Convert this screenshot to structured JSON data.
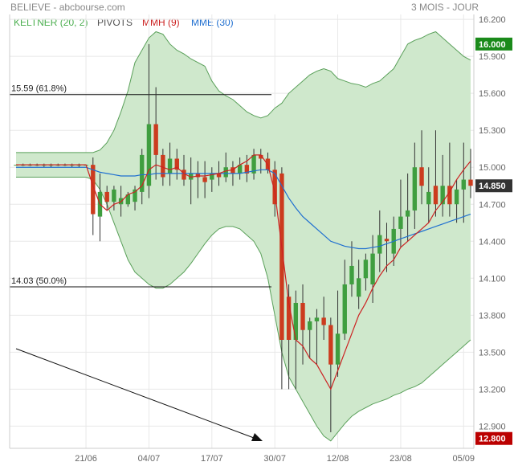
{
  "header": {
    "title": "BELIEVE - abcbourse.com",
    "period": "3 MOIS - JOUR"
  },
  "legend": [
    {
      "label": "KELTNER (20, 2)",
      "color": "#4caf50"
    },
    {
      "label": "PIVOTS",
      "color": "#555555"
    },
    {
      "label": "MMH (9)",
      "color": "#cc2222"
    },
    {
      "label": "MME (30)",
      "color": "#1f6fd0"
    }
  ],
  "colors": {
    "up": "#3f9e3f",
    "down": "#cc3b1e",
    "keltner_fill": "#cfe8cc",
    "keltner_line": "#5aa05a",
    "mmh": "#cc2222",
    "mme": "#1f6fd0",
    "badge_high": "#1a8a1a",
    "badge_current": "#333333",
    "badge_low": "#bb0000"
  },
  "chart_data": {
    "type": "candlestick",
    "title": "BELIEVE - abcbourse.com",
    "subtitle": "3 MOIS - JOUR",
    "x_ticks": [
      "21/06",
      "04/07",
      "17/07",
      "30/07",
      "12/08",
      "23/08",
      "05/09"
    ],
    "x_tick_bar_index": [
      10,
      19,
      28,
      37,
      46,
      55,
      64
    ],
    "y_ticks": [
      12.9,
      13.2,
      13.5,
      13.8,
      14.1,
      14.4,
      14.7,
      15.0,
      15.3,
      15.6,
      15.9,
      16.2
    ],
    "ylim": [
      12.72,
      16.24
    ],
    "fib_levels": [
      {
        "label": "15.59 (61.8%)",
        "value": 15.59
      },
      {
        "label": "14.03 (50.0%)",
        "value": 14.03
      }
    ],
    "badges": [
      {
        "label": "16.000",
        "value": 16.0,
        "kind": "high"
      },
      {
        "label": "14.850",
        "value": 14.85,
        "kind": "current"
      },
      {
        "label": "12.800",
        "value": 12.8,
        "kind": "low"
      }
    ],
    "ohlc": [
      [
        15.02,
        15.02,
        15.02,
        15.02
      ],
      [
        15.02,
        15.03,
        15.01,
        15.02
      ],
      [
        15.02,
        15.03,
        15.01,
        15.02
      ],
      [
        15.02,
        15.03,
        15.01,
        15.02
      ],
      [
        15.02,
        15.03,
        15.0,
        15.02
      ],
      [
        15.02,
        15.03,
        15.0,
        15.02
      ],
      [
        15.02,
        15.03,
        15.01,
        15.02
      ],
      [
        15.02,
        15.03,
        15.01,
        15.02
      ],
      [
        15.02,
        15.03,
        15.0,
        15.02
      ],
      [
        15.02,
        15.03,
        15.0,
        15.02
      ],
      [
        15.02,
        15.02,
        15.02,
        15.02
      ],
      [
        15.02,
        15.08,
        14.45,
        14.62
      ],
      [
        14.6,
        14.95,
        14.4,
        14.8
      ],
      [
        14.8,
        14.85,
        14.65,
        14.72
      ],
      [
        14.72,
        14.85,
        14.65,
        14.82
      ],
      [
        14.7,
        14.85,
        14.6,
        14.75
      ],
      [
        14.7,
        14.8,
        14.68,
        14.78
      ],
      [
        14.72,
        14.85,
        14.65,
        14.82
      ],
      [
        14.8,
        15.15,
        14.7,
        15.1
      ],
      [
        14.85,
        16.0,
        14.75,
        15.35
      ],
      [
        15.35,
        15.65,
        14.9,
        15.1
      ],
      [
        15.1,
        15.15,
        14.85,
        14.92
      ],
      [
        14.95,
        15.2,
        14.85,
        15.07
      ],
      [
        15.07,
        15.15,
        14.9,
        14.98
      ],
      [
        14.98,
        15.1,
        14.85,
        14.9
      ],
      [
        14.9,
        15.08,
        14.7,
        14.95
      ],
      [
        14.95,
        15.05,
        14.75,
        14.92
      ],
      [
        14.92,
        15.05,
        14.75,
        14.88
      ],
      [
        14.9,
        15.0,
        14.8,
        14.95
      ],
      [
        14.95,
        15.05,
        14.85,
        14.92
      ],
      [
        14.92,
        15.12,
        14.88,
        15.0
      ],
      [
        15.0,
        15.05,
        14.85,
        14.95
      ],
      [
        14.95,
        15.08,
        14.9,
        15.02
      ],
      [
        15.02,
        15.1,
        14.88,
        14.95
      ],
      [
        14.95,
        15.15,
        14.9,
        15.1
      ],
      [
        15.1,
        15.15,
        14.95,
        15.07
      ],
      [
        15.07,
        15.12,
        14.95,
        14.98
      ],
      [
        14.98,
        15.05,
        14.6,
        14.7
      ],
      [
        14.95,
        15.0,
        13.2,
        13.6
      ],
      [
        13.95,
        14.05,
        13.2,
        13.6
      ],
      [
        13.6,
        14.0,
        13.2,
        13.9
      ],
      [
        13.9,
        14.05,
        13.4,
        13.68
      ],
      [
        13.68,
        13.78,
        13.45,
        13.75
      ],
      [
        13.75,
        13.85,
        13.4,
        13.78
      ],
      [
        13.78,
        13.95,
        13.6,
        13.72
      ],
      [
        13.72,
        13.78,
        12.85,
        13.4
      ],
      [
        13.4,
        14.0,
        13.3,
        13.65
      ],
      [
        13.65,
        14.25,
        13.6,
        14.05
      ],
      [
        14.05,
        14.4,
        13.95,
        14.2
      ],
      [
        13.95,
        14.25,
        13.85,
        14.1
      ],
      [
        14.1,
        14.3,
        14.0,
        14.25
      ],
      [
        14.05,
        14.45,
        13.9,
        14.3
      ],
      [
        14.3,
        14.65,
        14.15,
        14.45
      ],
      [
        14.42,
        14.55,
        14.15,
        14.4
      ],
      [
        14.3,
        14.6,
        14.2,
        14.5
      ],
      [
        14.5,
        14.9,
        14.35,
        14.6
      ],
      [
        14.6,
        14.95,
        14.4,
        14.65
      ],
      [
        14.65,
        15.2,
        14.5,
        15.0
      ],
      [
        15.0,
        15.3,
        14.7,
        14.85
      ],
      [
        14.7,
        15.0,
        14.55,
        14.8
      ],
      [
        14.85,
        15.3,
        14.6,
        14.7
      ],
      [
        14.7,
        15.1,
        14.6,
        14.85
      ],
      [
        14.85,
        15.2,
        14.6,
        14.7
      ],
      [
        14.7,
        14.9,
        14.55,
        14.82
      ],
      [
        14.82,
        15.2,
        14.55,
        14.9
      ],
      [
        14.9,
        15.15,
        14.75,
        14.85
      ]
    ],
    "keltner_upper": [
      15.12,
      15.12,
      15.12,
      15.12,
      15.12,
      15.12,
      15.12,
      15.12,
      15.12,
      15.12,
      15.12,
      15.12,
      15.14,
      15.2,
      15.3,
      15.45,
      15.62,
      15.85,
      15.95,
      16.05,
      16.1,
      16.08,
      16.0,
      15.95,
      15.92,
      15.88,
      15.85,
      15.82,
      15.7,
      15.62,
      15.58,
      15.55,
      15.5,
      15.45,
      15.42,
      15.4,
      15.42,
      15.48,
      15.52,
      15.6,
      15.65,
      15.7,
      15.75,
      15.78,
      15.8,
      15.78,
      15.72,
      15.7,
      15.68,
      15.67,
      15.65,
      15.68,
      15.7,
      15.75,
      15.8,
      15.9,
      16.0,
      16.03,
      16.05,
      16.08,
      16.1,
      16.05,
      16.0,
      15.95,
      15.9,
      15.87
    ],
    "keltner_lower": [
      14.92,
      14.92,
      14.92,
      14.92,
      14.92,
      14.92,
      14.92,
      14.92,
      14.92,
      14.92,
      14.92,
      14.9,
      14.82,
      14.7,
      14.55,
      14.4,
      14.25,
      14.15,
      14.1,
      14.05,
      14.02,
      14.02,
      14.05,
      14.1,
      14.15,
      14.22,
      14.3,
      14.38,
      14.45,
      14.5,
      14.52,
      14.52,
      14.5,
      14.45,
      14.4,
      14.3,
      14.1,
      13.8,
      13.5,
      13.3,
      13.2,
      13.1,
      13.0,
      12.9,
      12.82,
      12.78,
      12.85,
      12.92,
      12.98,
      13.02,
      13.05,
      13.08,
      13.1,
      13.12,
      13.15,
      13.17,
      13.2,
      13.22,
      13.25,
      13.3,
      13.35,
      13.4,
      13.45,
      13.5,
      13.55,
      13.6
    ],
    "mmh": [
      15.02,
      15.02,
      15.02,
      15.02,
      15.02,
      15.02,
      15.02,
      15.02,
      15.02,
      15.02,
      15.02,
      14.85,
      14.7,
      14.65,
      14.7,
      14.72,
      14.78,
      14.8,
      14.85,
      14.98,
      15.02,
      15.0,
      14.98,
      15.0,
      14.95,
      14.92,
      14.93,
      14.93,
      14.94,
      14.95,
      14.97,
      14.98,
      15.02,
      15.05,
      15.1,
      15.1,
      15.02,
      14.8,
      14.35,
      13.9,
      13.6,
      13.55,
      13.45,
      13.4,
      13.3,
      13.2,
      13.35,
      13.5,
      13.65,
      13.8,
      13.9,
      14.02,
      14.12,
      14.2,
      14.25,
      14.35,
      14.4,
      14.45,
      14.5,
      14.55,
      14.65,
      14.72,
      14.8,
      14.9,
      14.98,
      15.05
    ],
    "mme": [
      15.0,
      15.0,
      15.0,
      15.0,
      15.0,
      15.0,
      15.0,
      15.0,
      15.0,
      15.0,
      15.0,
      14.98,
      14.96,
      14.95,
      14.94,
      14.93,
      14.93,
      14.93,
      14.94,
      14.94,
      14.95,
      14.95,
      14.95,
      14.95,
      14.95,
      14.95,
      14.95,
      14.95,
      14.95,
      14.95,
      14.95,
      14.95,
      14.95,
      14.96,
      14.97,
      14.98,
      14.98,
      14.95,
      14.85,
      14.75,
      14.67,
      14.6,
      14.55,
      14.5,
      14.45,
      14.4,
      14.38,
      14.36,
      14.35,
      14.34,
      14.34,
      14.35,
      14.36,
      14.38,
      14.4,
      14.42,
      14.44,
      14.46,
      14.48,
      14.5,
      14.52,
      14.54,
      14.56,
      14.58,
      14.6,
      14.62
    ]
  }
}
